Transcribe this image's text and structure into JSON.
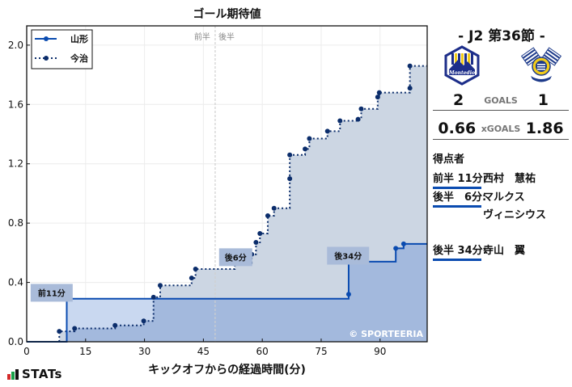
{
  "title": "ゴール期待値",
  "xlabel": "キックオフからの経過時間(分)",
  "brand": {
    "label": "STATs",
    "bar_colors": [
      "#d42a2a",
      "#1aa14a",
      "#111111"
    ]
  },
  "watermark": "© SPORTEERIA",
  "half_labels": {
    "first": "前半",
    "second": "後半"
  },
  "legend": [
    {
      "label": "山形",
      "style": "solid"
    },
    {
      "label": "今治",
      "style": "dotted"
    }
  ],
  "match": {
    "round": "- J2 第36節 -",
    "home": {
      "name": "山形",
      "goals": "2",
      "xg": "0.66",
      "logo": "montedio-yamagata-logo"
    },
    "away": {
      "name": "今治",
      "goals": "1",
      "xg": "1.86",
      "logo": "fc-imabari-logo"
    },
    "goals_label": "GOALS",
    "xg_label": "xGOALS"
  },
  "scorers": {
    "heading": "得点者",
    "items": [
      {
        "time": "前半 11分:",
        "name": "西村　慧祐"
      },
      {
        "time": "後半　6分:",
        "name": "マルクス\nヴィニシウス"
      },
      {
        "time": "後半 34分:",
        "name": "寺山　翼"
      }
    ]
  },
  "colors": {
    "home_line": "#0a4bb0",
    "away_line": "#0b2d6b",
    "home_fill": "#a3b9dd",
    "home_fill_light": "#c9d8f0",
    "away_fill": "#ccd6e3",
    "annotation_bg": "#a9bbd9",
    "grid": "#ececec"
  },
  "chart_data": {
    "type": "line",
    "step": "post",
    "title": "ゴール期待値",
    "xlabel": "キックオフからの経過時間(分)",
    "ylabel": "",
    "xlim": [
      0,
      102
    ],
    "ylim": [
      0,
      2.13
    ],
    "xticks": [
      0,
      15,
      30,
      45,
      60,
      75,
      90
    ],
    "yticks": [
      0.0,
      0.4,
      0.8,
      1.2,
      1.6,
      2.0
    ],
    "ytick_labels": [
      "0.0",
      "0.4",
      "0.8",
      "1.2",
      "1.6",
      "2.0"
    ],
    "grid": true,
    "legend_position": "upper left",
    "halftime_x": 48,
    "series": [
      {
        "name": "山形",
        "style": "solid",
        "points": [
          [
            0,
            0.0
          ],
          [
            10.2,
            0.29
          ],
          [
            82,
            0.32
          ],
          [
            82,
            0.54
          ],
          [
            94,
            0.63
          ],
          [
            96,
            0.66
          ],
          [
            102,
            0.66
          ]
        ]
      },
      {
        "name": "今治",
        "style": "dotted",
        "points": [
          [
            8.3,
            0.07
          ],
          [
            12.2,
            0.09
          ],
          [
            22.5,
            0.11
          ],
          [
            29.8,
            0.14
          ],
          [
            32.3,
            0.3
          ],
          [
            34,
            0.38
          ],
          [
            42,
            0.43
          ],
          [
            43,
            0.49
          ],
          [
            53,
            0.53
          ],
          [
            57.3,
            0.59
          ],
          [
            58.4,
            0.67
          ],
          [
            59.4,
            0.73
          ],
          [
            61.4,
            0.85
          ],
          [
            63,
            0.9
          ],
          [
            67,
            1.1
          ],
          [
            67,
            1.26
          ],
          [
            70.9,
            1.3
          ],
          [
            72,
            1.37
          ],
          [
            76.6,
            1.42
          ],
          [
            79.8,
            1.49
          ],
          [
            84.4,
            1.5
          ],
          [
            85.2,
            1.57
          ],
          [
            89.4,
            1.65
          ],
          [
            89.8,
            1.68
          ],
          [
            97.6,
            1.71
          ],
          [
            97.6,
            1.86
          ],
          [
            102,
            1.86
          ]
        ]
      }
    ],
    "annotations": [
      {
        "text": "前11分",
        "x": 10.2,
        "y": 0.29,
        "box_x": 1,
        "box_y": 0.39
      },
      {
        "text": "後6分",
        "x": 53,
        "y": 0.53,
        "box_x": 49,
        "box_y": 0.63
      },
      {
        "text": "後34分",
        "x": 82,
        "y": 0.54,
        "box_x": 76.5,
        "box_y": 0.64
      }
    ]
  }
}
